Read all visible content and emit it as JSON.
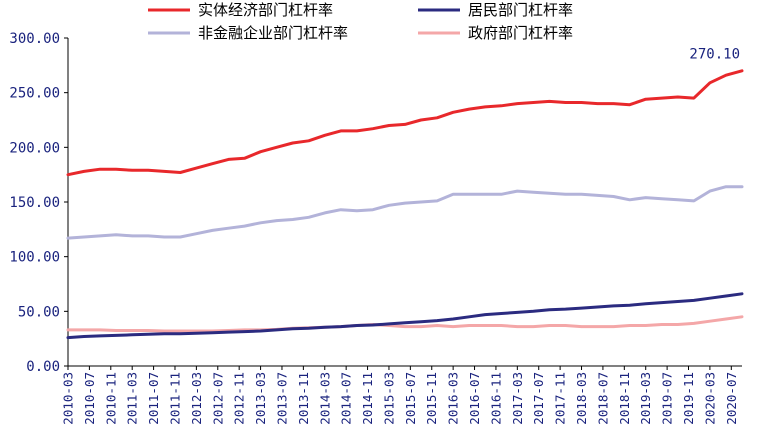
{
  "chart_data": {
    "type": "line",
    "title": "",
    "xlabel": "",
    "ylabel": "",
    "ylim": [
      0,
      300
    ],
    "yticks": [
      "0.00",
      "50.00",
      "100.00",
      "150.00",
      "200.00",
      "250.00",
      "300.00"
    ],
    "xtick_labels": [
      "2010-03",
      "2010-07",
      "2010-11",
      "2011-03",
      "2011-07",
      "2011-11",
      "2012-03",
      "2012-07",
      "2012-11",
      "2013-03",
      "2013-07",
      "2013-11",
      "2014-03",
      "2014-07",
      "2014-11",
      "2015-03",
      "2015-07",
      "2015-11",
      "2016-03",
      "2016-07",
      "2016-11",
      "2017-03",
      "2017-07",
      "2017-11",
      "2018-03",
      "2018-07",
      "2018-11",
      "2019-03",
      "2019-07",
      "2019-11",
      "2020-03",
      "2020-07"
    ],
    "x": [
      "2010-03",
      "2010-06",
      "2010-09",
      "2010-12",
      "2011-03",
      "2011-06",
      "2011-09",
      "2011-12",
      "2012-03",
      "2012-06",
      "2012-09",
      "2012-12",
      "2013-03",
      "2013-06",
      "2013-09",
      "2013-12",
      "2014-03",
      "2014-06",
      "2014-09",
      "2014-12",
      "2015-03",
      "2015-06",
      "2015-09",
      "2015-12",
      "2016-03",
      "2016-06",
      "2016-09",
      "2016-12",
      "2017-03",
      "2017-06",
      "2017-09",
      "2017-12",
      "2018-03",
      "2018-06",
      "2018-09",
      "2018-12",
      "2019-03",
      "2019-06",
      "2019-09",
      "2019-12",
      "2020-03",
      "2020-06",
      "2020-09"
    ],
    "series": [
      {
        "name": "实体经济部门杠杆率",
        "color": "#e8282b",
        "values": [
          175,
          178,
          180,
          180,
          179,
          179,
          178,
          177,
          181,
          185,
          189,
          190,
          196,
          200,
          204,
          206,
          211,
          215,
          215,
          217,
          220,
          221,
          225,
          227,
          232,
          235,
          237,
          238,
          240,
          241,
          242,
          241,
          241,
          240,
          240,
          239,
          244,
          245,
          246,
          245,
          259,
          266,
          270
        ]
      },
      {
        "name": "居民部门杠杆率",
        "color": "#2b2b80",
        "values": [
          26,
          27,
          27.5,
          28,
          28.5,
          29,
          29.5,
          29.5,
          30,
          30.5,
          31,
          31.5,
          32,
          33,
          34,
          34.5,
          35.5,
          36,
          37,
          37.5,
          38.5,
          39.5,
          40.5,
          41.5,
          43,
          45,
          47,
          48,
          49,
          50,
          51.5,
          52,
          53,
          54,
          55,
          55.5,
          57,
          58,
          59,
          60,
          62,
          64,
          66
        ]
      },
      {
        "name": "非金融企业部门杠杆率",
        "color": "#b3b3d9",
        "values": [
          117,
          118,
          119,
          120,
          119,
          119,
          118,
          118,
          121,
          124,
          126,
          128,
          131,
          133,
          134,
          136,
          140,
          143,
          142,
          143,
          147,
          149,
          150,
          151,
          157,
          157,
          157,
          157,
          160,
          159,
          158,
          157,
          157,
          156,
          155,
          152,
          154,
          153,
          152,
          151,
          160,
          164,
          164
        ]
      },
      {
        "name": "政府部门杠杆率",
        "color": "#f4a7a8",
        "values": [
          33,
          33,
          33,
          32.5,
          32.5,
          32.5,
          32,
          32,
          32,
          32,
          32.5,
          33,
          33,
          33.5,
          34.5,
          35,
          35.5,
          36,
          37,
          38,
          37,
          36,
          36,
          37,
          36,
          37,
          37,
          37,
          36,
          36,
          37,
          37,
          36,
          36,
          36,
          37,
          37,
          38,
          38,
          39,
          41,
          43,
          45
        ]
      }
    ],
    "annotations": [
      {
        "text": "270.10",
        "series": "实体经济部门杠杆率",
        "x": "2020-09",
        "y": 270.1
      }
    ],
    "legend_placement": "top",
    "grid": false
  }
}
